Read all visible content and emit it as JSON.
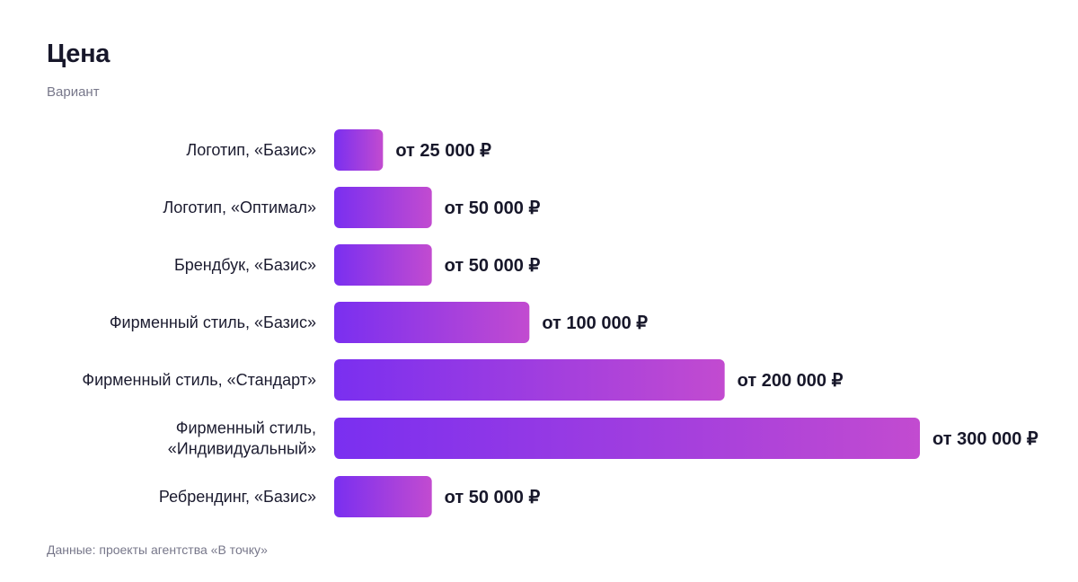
{
  "header": {
    "title": "Цена",
    "subtitle": "Вариант"
  },
  "footer": {
    "source": "Данные: проекты агентства «В точку»"
  },
  "colors": {
    "bar_start": "#7a2ff0",
    "bar_end": "#c24bd0",
    "text": "#1b1b2f",
    "muted": "#77778a"
  },
  "chart_data": {
    "type": "bar",
    "orientation": "horizontal",
    "categories": [
      [
        "Логотип, «Базис»"
      ],
      [
        "Логотип, «Оптимал»"
      ],
      [
        "Брендбук, «Базис»"
      ],
      [
        "Фирменный стиль, «Базис»"
      ],
      [
        "Фирменный стиль, «Стандарт»"
      ],
      [
        "Фирменный стиль,",
        "«Индивидуальный»"
      ],
      [
        "Ребрендинг, «Базис»"
      ]
    ],
    "values": [
      25000,
      50000,
      50000,
      100000,
      200000,
      300000,
      50000
    ],
    "value_labels": [
      "от 25 000 ₽",
      "от 50 000 ₽",
      "от 50 000 ₽",
      "от 100 000 ₽",
      "от 200 000 ₽",
      "от 300 000 ₽",
      "от 50 000 ₽"
    ],
    "xlim": [
      0,
      300000
    ],
    "grid": false,
    "legend": "none"
  }
}
